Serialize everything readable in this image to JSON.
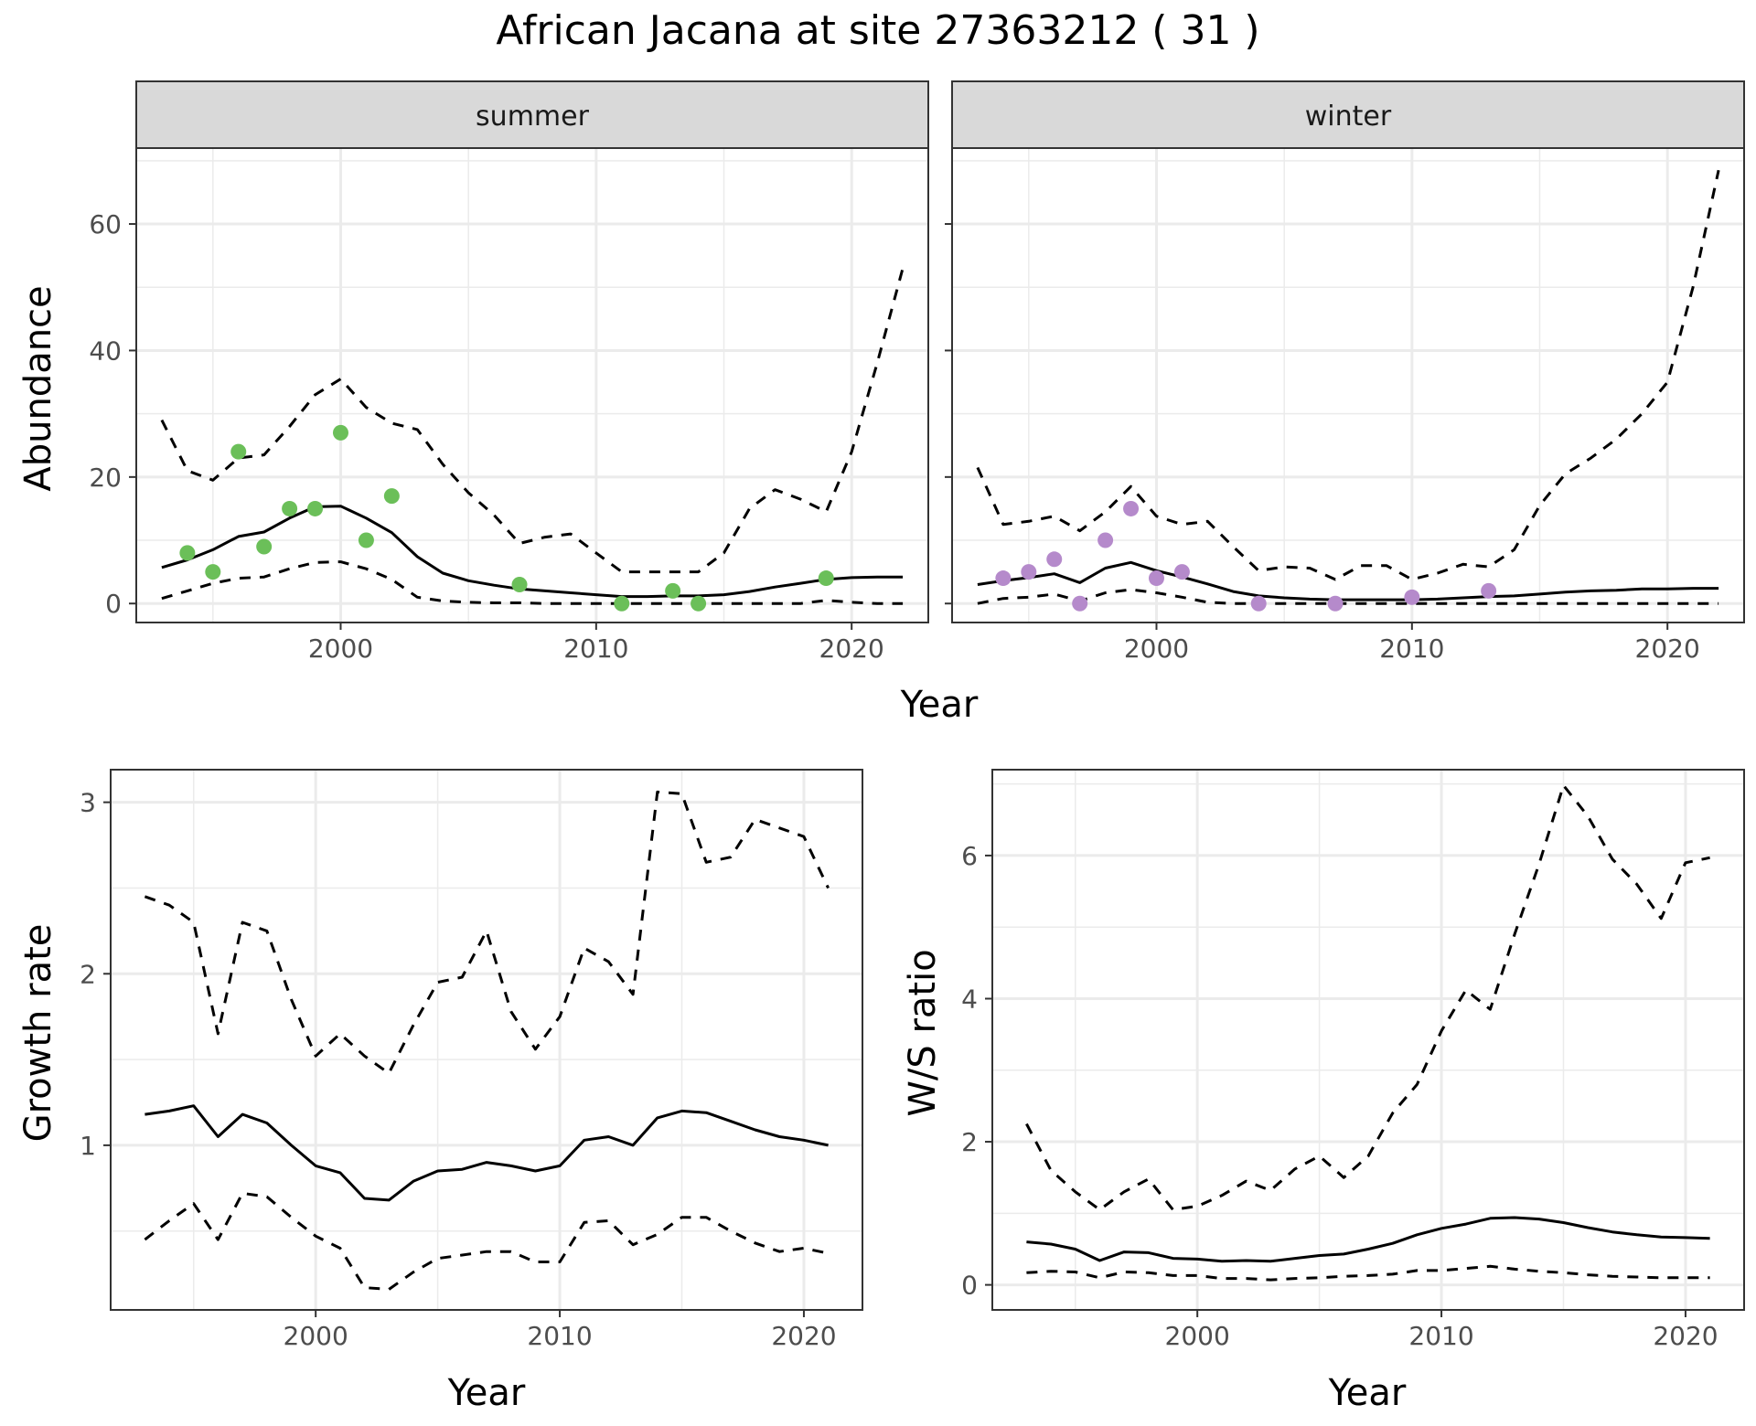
{
  "title": "African Jacana at site 27363212 ( 31 )",
  "colors": {
    "summer_points": "#6bbf59",
    "winter_points": "#b58acb",
    "lines": "#000000",
    "grid": "#ebebeb",
    "strip_bg": "#d9d9d9",
    "panel_border": "#333333"
  },
  "chart_data": [
    {
      "type": "line",
      "facet": "summer",
      "xlabel": "Year",
      "ylabel": "Abundance",
      "xlim": [
        1992,
        2023
      ],
      "ylim": [
        -3,
        72
      ],
      "xticks": [
        2000,
        2010,
        2020
      ],
      "yticks": [
        0,
        20,
        40,
        60
      ],
      "grid": true,
      "series": [
        {
          "role": "mean",
          "style": "solid",
          "x": [
            1993,
            1994,
            1995,
            1996,
            1997,
            1998,
            1999,
            2000,
            2001,
            2002,
            2003,
            2004,
            2005,
            2006,
            2007,
            2008,
            2009,
            2010,
            2011,
            2012,
            2013,
            2014,
            2015,
            2016,
            2017,
            2018,
            2019,
            2020,
            2021,
            2022
          ],
          "y": [
            5.7,
            6.9,
            8.5,
            10.6,
            11.3,
            13.5,
            15.3,
            15.4,
            13.5,
            11.2,
            7.4,
            4.8,
            3.6,
            2.9,
            2.3,
            2.0,
            1.7,
            1.4,
            1.1,
            1.1,
            1.2,
            1.2,
            1.4,
            1.9,
            2.6,
            3.2,
            3.8,
            4.1,
            4.2,
            4.2
          ]
        },
        {
          "role": "upper",
          "style": "dashed",
          "x": [
            1993,
            1994,
            1995,
            1996,
            1997,
            1998,
            1999,
            2000,
            2001,
            2002,
            2003,
            2004,
            2005,
            2006,
            2007,
            2008,
            2009,
            2010,
            2011,
            2012,
            2013,
            2014,
            2015,
            2016,
            2017,
            2018,
            2019,
            2020,
            2021,
            2022
          ],
          "y": [
            29,
            21,
            19.5,
            23,
            23.5,
            28,
            33,
            35.5,
            31,
            28.5,
            27.5,
            22,
            17.5,
            14,
            9.5,
            10.5,
            11,
            8,
            5,
            5,
            5,
            5,
            8,
            15,
            18,
            16.5,
            14.5,
            24,
            38,
            53
          ]
        },
        {
          "role": "lower",
          "style": "dashed",
          "x": [
            1993,
            1994,
            1995,
            1996,
            1997,
            1998,
            1999,
            2000,
            2001,
            2002,
            2003,
            2004,
            2005,
            2006,
            2007,
            2008,
            2009,
            2010,
            2011,
            2012,
            2013,
            2014,
            2015,
            2016,
            2017,
            2018,
            2019,
            2020,
            2021,
            2022
          ],
          "y": [
            0.8,
            2,
            3.2,
            4,
            4.2,
            5.5,
            6.5,
            6.6,
            5.5,
            3.8,
            1,
            0.4,
            0.2,
            0.1,
            0.1,
            0,
            0,
            0,
            0,
            0,
            0,
            0,
            0,
            0,
            0,
            0,
            0.5,
            0.2,
            0,
            0
          ]
        },
        {
          "role": "observed",
          "style": "points",
          "x": [
            1994,
            1995,
            1996,
            1997,
            1998,
            1999,
            2000,
            2001,
            2002,
            2007,
            2011,
            2013,
            2014,
            2019
          ],
          "y": [
            8,
            5,
            24,
            9,
            15,
            15,
            27,
            10,
            17,
            3,
            0,
            2,
            0,
            4
          ]
        }
      ]
    },
    {
      "type": "line",
      "facet": "winter",
      "xlabel": "Year",
      "ylabel": "Abundance",
      "xlim": [
        1992,
        2023
      ],
      "ylim": [
        -3,
        72
      ],
      "xticks": [
        2000,
        2010,
        2020
      ],
      "yticks": [
        0,
        20,
        40,
        60
      ],
      "grid": true,
      "series": [
        {
          "role": "mean",
          "style": "solid",
          "x": [
            1993,
            1994,
            1995,
            1996,
            1997,
            1998,
            1999,
            2000,
            2001,
            2002,
            2003,
            2004,
            2005,
            2006,
            2007,
            2008,
            2009,
            2010,
            2011,
            2012,
            2013,
            2014,
            2015,
            2016,
            2017,
            2018,
            2019,
            2020,
            2021,
            2022
          ],
          "y": [
            3,
            3.6,
            4.1,
            4.7,
            3.3,
            5.6,
            6.5,
            5.2,
            4.2,
            3.1,
            1.9,
            1.2,
            0.9,
            0.7,
            0.6,
            0.6,
            0.6,
            0.6,
            0.7,
            0.9,
            1.1,
            1.2,
            1.5,
            1.8,
            2.0,
            2.1,
            2.3,
            2.3,
            2.4,
            2.4
          ]
        },
        {
          "role": "upper",
          "style": "dashed",
          "x": [
            1993,
            1994,
            1995,
            1996,
            1997,
            1998,
            1999,
            2000,
            2001,
            2002,
            2003,
            2004,
            2005,
            2006,
            2007,
            2008,
            2009,
            2010,
            2011,
            2012,
            2013,
            2014,
            2015,
            2016,
            2017,
            2018,
            2019,
            2020,
            2021,
            2022
          ],
          "y": [
            21.5,
            12.5,
            13,
            13.8,
            11.5,
            14.5,
            18.5,
            13.8,
            12.5,
            13,
            9,
            5.2,
            5.8,
            5.6,
            3.8,
            6,
            6,
            3.8,
            4.8,
            6.2,
            5.8,
            8.5,
            15.5,
            20.5,
            23,
            26,
            30,
            35,
            50,
            68.5
          ]
        },
        {
          "role": "lower",
          "style": "dashed",
          "x": [
            1993,
            1994,
            1995,
            1996,
            1997,
            1998,
            1999,
            2000,
            2001,
            2002,
            2003,
            2004,
            2005,
            2006,
            2007,
            2008,
            2009,
            2010,
            2011,
            2012,
            2013,
            2014,
            2015,
            2016,
            2017,
            2018,
            2019,
            2020,
            2021,
            2022
          ],
          "y": [
            0,
            0.8,
            1,
            1.5,
            0.4,
            1.7,
            2.2,
            1.7,
            1,
            0.2,
            0,
            0,
            0,
            0,
            0,
            0,
            0,
            0,
            0,
            0,
            0,
            0,
            0,
            0,
            0,
            0,
            0,
            0,
            0,
            0
          ]
        },
        {
          "role": "observed",
          "style": "points",
          "x": [
            1994,
            1995,
            1996,
            1997,
            1998,
            1999,
            2000,
            2001,
            2004,
            2007,
            2010,
            2013
          ],
          "y": [
            4,
            5,
            7,
            0,
            10,
            15,
            4,
            5,
            0,
            0,
            1,
            2
          ]
        }
      ]
    },
    {
      "type": "line",
      "xlabel": "Year",
      "ylabel": "Growth rate",
      "xlim": [
        1991.6,
        2022.4
      ],
      "ylim": [
        0.04,
        3.19
      ],
      "xticks": [
        2000,
        2010,
        2020
      ],
      "yticks": [
        1,
        2,
        3
      ],
      "grid": true,
      "series": [
        {
          "role": "mean",
          "style": "solid",
          "x": [
            1993,
            1994,
            1995,
            1996,
            1997,
            1998,
            1999,
            2000,
            2001,
            2002,
            2003,
            2004,
            2005,
            2006,
            2007,
            2008,
            2009,
            2010,
            2011,
            2012,
            2013,
            2014,
            2015,
            2016,
            2017,
            2018,
            2019,
            2020,
            2021
          ],
          "y": [
            1.18,
            1.2,
            1.23,
            1.05,
            1.18,
            1.13,
            1,
            0.88,
            0.84,
            0.69,
            0.68,
            0.79,
            0.85,
            0.86,
            0.9,
            0.88,
            0.85,
            0.88,
            1.03,
            1.05,
            1,
            1.16,
            1.2,
            1.19,
            1.14,
            1.09,
            1.05,
            1.03,
            1
          ]
        },
        {
          "role": "upper",
          "style": "dashed",
          "x": [
            1993,
            1994,
            1995,
            1996,
            1997,
            1998,
            1999,
            2000,
            2001,
            2002,
            2003,
            2004,
            2005,
            2006,
            2007,
            2008,
            2009,
            2010,
            2011,
            2012,
            2013,
            2014,
            2015,
            2016,
            2017,
            2018,
            2019,
            2020,
            2021
          ],
          "y": [
            2.45,
            2.4,
            2.3,
            1.65,
            2.3,
            2.25,
            1.85,
            1.52,
            1.65,
            1.52,
            1.42,
            1.7,
            1.95,
            1.98,
            2.25,
            1.78,
            1.56,
            1.75,
            2.15,
            2.07,
            1.88,
            3.06,
            3.05,
            2.65,
            2.68,
            2.9,
            2.85,
            2.8,
            2.5
          ]
        },
        {
          "role": "lower",
          "style": "dashed",
          "x": [
            1993,
            1994,
            1995,
            1996,
            1997,
            1998,
            1999,
            2000,
            2001,
            2002,
            2003,
            2004,
            2005,
            2006,
            2007,
            2008,
            2009,
            2010,
            2011,
            2012,
            2013,
            2014,
            2015,
            2016,
            2017,
            2018,
            2019,
            2020,
            2021
          ],
          "y": [
            0.45,
            0.56,
            0.66,
            0.45,
            0.72,
            0.7,
            0.58,
            0.47,
            0.4,
            0.17,
            0.16,
            0.26,
            0.34,
            0.36,
            0.38,
            0.38,
            0.32,
            0.32,
            0.55,
            0.56,
            0.42,
            0.48,
            0.58,
            0.58,
            0.5,
            0.43,
            0.38,
            0.4,
            0.37
          ]
        }
      ]
    },
    {
      "type": "line",
      "xlabel": "Year",
      "ylabel": "W/S ratio",
      "xlim": [
        1991.6,
        2022.4
      ],
      "ylim": [
        -0.35,
        7.2
      ],
      "xticks": [
        2000,
        2010,
        2020
      ],
      "yticks": [
        0,
        2,
        4,
        6
      ],
      "grid": true,
      "series": [
        {
          "role": "mean",
          "style": "solid",
          "x": [
            1993,
            1994,
            1995,
            1996,
            1997,
            1998,
            1999,
            2000,
            2001,
            2002,
            2003,
            2004,
            2005,
            2006,
            2007,
            2008,
            2009,
            2010,
            2011,
            2012,
            2013,
            2014,
            2015,
            2016,
            2017,
            2018,
            2019,
            2020,
            2021
          ],
          "y": [
            0.6,
            0.57,
            0.5,
            0.34,
            0.46,
            0.45,
            0.37,
            0.36,
            0.33,
            0.34,
            0.33,
            0.37,
            0.41,
            0.43,
            0.5,
            0.58,
            0.7,
            0.79,
            0.85,
            0.93,
            0.94,
            0.92,
            0.87,
            0.8,
            0.74,
            0.7,
            0.67,
            0.66,
            0.65
          ]
        },
        {
          "role": "upper",
          "style": "dashed",
          "x": [
            1993,
            1994,
            1995,
            1996,
            1997,
            1998,
            1999,
            2000,
            2001,
            2002,
            2003,
            2004,
            2005,
            2006,
            2007,
            2008,
            2009,
            2010,
            2011,
            2012,
            2013,
            2014,
            2015,
            2016,
            2017,
            2018,
            2019,
            2020,
            2021
          ],
          "y": [
            2.25,
            1.6,
            1.3,
            1.05,
            1.3,
            1.48,
            1.05,
            1.1,
            1.25,
            1.45,
            1.32,
            1.62,
            1.8,
            1.5,
            1.8,
            2.4,
            2.8,
            3.55,
            4.12,
            3.85,
            4.9,
            5.88,
            6.98,
            6.55,
            5.95,
            5.6,
            5.12,
            5.9,
            5.97
          ]
        },
        {
          "role": "lower",
          "style": "dashed",
          "x": [
            1993,
            1994,
            1995,
            1996,
            1997,
            1998,
            1999,
            2000,
            2001,
            2002,
            2003,
            2004,
            2005,
            2006,
            2007,
            2008,
            2009,
            2010,
            2011,
            2012,
            2013,
            2014,
            2015,
            2016,
            2017,
            2018,
            2019,
            2020,
            2021
          ],
          "y": [
            0.17,
            0.19,
            0.18,
            0.1,
            0.18,
            0.17,
            0.13,
            0.13,
            0.09,
            0.09,
            0.07,
            0.09,
            0.1,
            0.12,
            0.13,
            0.15,
            0.2,
            0.2,
            0.23,
            0.26,
            0.22,
            0.19,
            0.17,
            0.14,
            0.12,
            0.11,
            0.1,
            0.1,
            0.1
          ]
        }
      ]
    }
  ]
}
